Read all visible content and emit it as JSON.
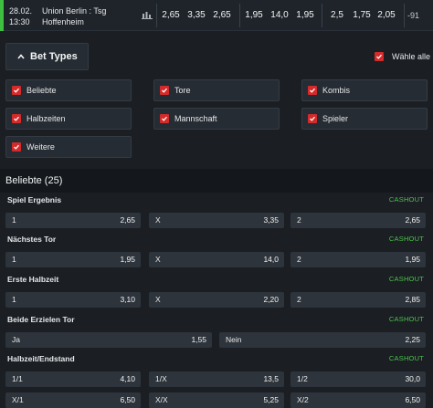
{
  "match": {
    "date": "28.02.",
    "time": "13:30",
    "teams_line1": "Union Berlin : Tsg",
    "teams_line2": "Hoffenheim",
    "odds_1x2": [
      "2,65",
      "3,35",
      "2,65"
    ],
    "odds_dc": [
      "1,95",
      "14,0",
      "1,95"
    ],
    "odds_ou": [
      "2,5",
      "1,75",
      "2,05"
    ],
    "more": "-91",
    "accent_color": "#3fbf3f"
  },
  "bet_types": {
    "title": "Bet Types",
    "select_all_label": "Wähle alle",
    "items": [
      {
        "label": "Beliebte"
      },
      {
        "label": "Tore"
      },
      {
        "label": "Kombis"
      },
      {
        "label": "Halbzeiten"
      },
      {
        "label": "Mannschaft"
      },
      {
        "label": "Spieler"
      },
      {
        "label": "Weitere"
      }
    ],
    "checkbox_color": "#d42a2a"
  },
  "section": {
    "title": "Beliebte (25)"
  },
  "markets": [
    {
      "title": "Spiel Ergebnis",
      "cashout": "CASHOUT",
      "rows": [
        [
          {
            "label": "1",
            "value": "2,65"
          },
          {
            "label": "X",
            "value": "3,35"
          },
          {
            "label": "2",
            "value": "2,65"
          }
        ]
      ]
    },
    {
      "title": "Nächstes Tor",
      "cashout": "CASHOUT",
      "rows": [
        [
          {
            "label": "1",
            "value": "1,95"
          },
          {
            "label": "X",
            "value": "14,0"
          },
          {
            "label": "2",
            "value": "1,95"
          }
        ]
      ]
    },
    {
      "title": "Erste Halbzeit",
      "cashout": "CASHOUT",
      "rows": [
        [
          {
            "label": "1",
            "value": "3,10"
          },
          {
            "label": "X",
            "value": "2,20"
          },
          {
            "label": "2",
            "value": "2,85"
          }
        ]
      ]
    },
    {
      "title": "Beide Erzielen Tor",
      "cashout": "CASHOUT",
      "rows": [
        [
          {
            "label": "Ja",
            "value": "1,55"
          },
          {
            "label": "Nein",
            "value": "2,25"
          }
        ]
      ]
    },
    {
      "title": "Halbzeit/Endstand",
      "cashout": "CASHOUT",
      "rows": [
        [
          {
            "label": "1/1",
            "value": "4,10"
          },
          {
            "label": "1/X",
            "value": "13,5"
          },
          {
            "label": "1/2",
            "value": "30,0"
          }
        ],
        [
          {
            "label": "X/1",
            "value": "6,50"
          },
          {
            "label": "X/X",
            "value": "5,25"
          },
          {
            "label": "X/2",
            "value": "6,50"
          }
        ]
      ]
    }
  ],
  "cashout_color": "#4cc24c"
}
